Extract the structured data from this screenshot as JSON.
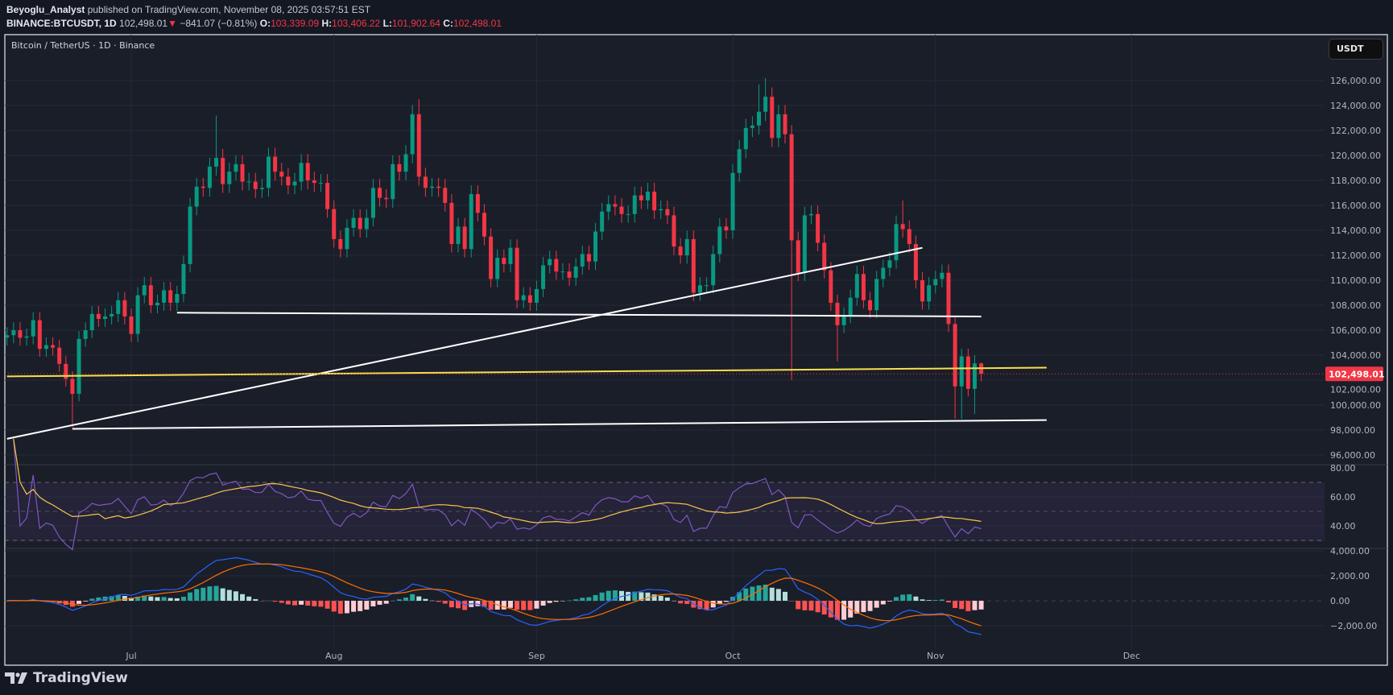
{
  "header": {
    "author": "Beyoglu_Analyst",
    "published": " published on TradingView.com, November 08, 2025 03:57:51 EST",
    "symbol": "BINANCE:BTCUSDT, 1D",
    "last": "102,498.01",
    "change": "−841.07 (−0.81%)",
    "o_label": "O:",
    "o": "103,339.09",
    "h_label": "H:",
    "h": "103,406.22",
    "l_label": "L:",
    "l": "101,902.64",
    "c_label": "C:",
    "c": "102,498.01"
  },
  "legend": {
    "title": "Bitcoin / TetherUS · 1D · Binance"
  },
  "currency_button": "USDT",
  "logo_text": "TradingView",
  "colors": {
    "up": "#089981",
    "down": "#f23645",
    "rsi": "#7e57c2",
    "rsi_ma": "#f7c548",
    "macd": "#2962ff",
    "signal": "#ff6d00",
    "trendline": "#ffffff",
    "yellow_line": "#f7e04b"
  },
  "chart_data": {
    "type": "candlestick",
    "price_axis": {
      "ticks": [
        "126,000.00",
        "124,000.00",
        "122,000.00",
        "120,000.00",
        "118,000.00",
        "116,000.00",
        "114,000.00",
        "112,000.00",
        "110,000.00",
        "108,000.00",
        "106,000.00",
        "104,000.00",
        "102,000.00",
        "100,000.00",
        "98,000.00",
        "96,000.00"
      ],
      "last_price_label": "102,498.01",
      "last_price": 102498.01
    },
    "time_axis": {
      "ticks": [
        {
          "date": "2025-07-01",
          "label": "Jul"
        },
        {
          "date": "2025-08-01",
          "label": "Aug"
        },
        {
          "date": "2025-09-01",
          "label": "Sep"
        },
        {
          "date": "2025-10-01",
          "label": "Oct"
        },
        {
          "date": "2025-11-01",
          "label": "Nov"
        },
        {
          "date": "2025-12-01",
          "label": "Dec"
        }
      ]
    },
    "last_candle": {
      "date": "2025-11-08",
      "open": 103339.09,
      "high": 103406.22,
      "low": 101902.64,
      "close": 102498.01
    },
    "closes": [
      [
        "2025-06-12",
        105600
      ],
      [
        "2025-06-13",
        106000
      ],
      [
        "2025-06-14",
        105400
      ],
      [
        "2025-06-15",
        105500
      ],
      [
        "2025-06-16",
        106800
      ],
      [
        "2025-06-17",
        104500
      ],
      [
        "2025-06-18",
        104800
      ],
      [
        "2025-06-19",
        104600
      ],
      [
        "2025-06-20",
        103300
      ],
      [
        "2025-06-21",
        102100
      ],
      [
        "2025-06-22",
        100900
      ],
      [
        "2025-06-23",
        105300
      ],
      [
        "2025-06-24",
        106000
      ],
      [
        "2025-06-25",
        107300
      ],
      [
        "2025-06-26",
        106900
      ],
      [
        "2025-06-27",
        107100
      ],
      [
        "2025-06-28",
        107300
      ],
      [
        "2025-06-29",
        108400
      ],
      [
        "2025-06-30",
        107100
      ],
      [
        "2025-07-01",
        105700
      ],
      [
        "2025-07-02",
        108800
      ],
      [
        "2025-07-03",
        109600
      ],
      [
        "2025-07-04",
        108000
      ],
      [
        "2025-07-05",
        108200
      ],
      [
        "2025-07-06",
        109200
      ],
      [
        "2025-07-07",
        108200
      ],
      [
        "2025-07-08",
        108900
      ],
      [
        "2025-07-09",
        111300
      ],
      [
        "2025-07-10",
        115900
      ],
      [
        "2025-07-11",
        117500
      ],
      [
        "2025-07-12",
        117400
      ],
      [
        "2025-07-13",
        119100
      ],
      [
        "2025-07-14",
        119800
      ],
      [
        "2025-07-15",
        117700
      ],
      [
        "2025-07-16",
        118700
      ],
      [
        "2025-07-17",
        119300
      ],
      [
        "2025-07-18",
        117900
      ],
      [
        "2025-07-19",
        117900
      ],
      [
        "2025-07-20",
        117300
      ],
      [
        "2025-07-21",
        117400
      ],
      [
        "2025-07-22",
        119900
      ],
      [
        "2025-07-23",
        118700
      ],
      [
        "2025-07-24",
        118300
      ],
      [
        "2025-07-25",
        117600
      ],
      [
        "2025-07-26",
        117900
      ],
      [
        "2025-07-27",
        119400
      ],
      [
        "2025-07-28",
        118000
      ],
      [
        "2025-07-29",
        117800
      ],
      [
        "2025-07-30",
        117800
      ],
      [
        "2025-07-31",
        115700
      ],
      [
        "2025-08-01",
        113300
      ],
      [
        "2025-08-02",
        112500
      ],
      [
        "2025-08-03",
        114200
      ],
      [
        "2025-08-04",
        115000
      ],
      [
        "2025-08-05",
        114100
      ],
      [
        "2025-08-06",
        115000
      ],
      [
        "2025-08-07",
        117400
      ],
      [
        "2025-08-08",
        116600
      ],
      [
        "2025-08-09",
        116500
      ],
      [
        "2025-08-10",
        119300
      ],
      [
        "2025-08-11",
        118700
      ],
      [
        "2025-08-12",
        120100
      ],
      [
        "2025-08-13",
        123300
      ],
      [
        "2025-08-14",
        118300
      ],
      [
        "2025-08-15",
        117400
      ],
      [
        "2025-08-16",
        117500
      ],
      [
        "2025-08-17",
        117400
      ],
      [
        "2025-08-18",
        116200
      ],
      [
        "2025-08-19",
        112900
      ],
      [
        "2025-08-20",
        114300
      ],
      [
        "2025-08-21",
        112500
      ],
      [
        "2025-08-22",
        116900
      ],
      [
        "2025-08-23",
        115400
      ],
      [
        "2025-08-24",
        113500
      ],
      [
        "2025-08-25",
        110100
      ],
      [
        "2025-08-26",
        111800
      ],
      [
        "2025-08-27",
        111300
      ],
      [
        "2025-08-28",
        112600
      ],
      [
        "2025-08-29",
        108400
      ],
      [
        "2025-08-30",
        108800
      ],
      [
        "2025-08-31",
        108200
      ],
      [
        "2025-09-01",
        109300
      ],
      [
        "2025-09-02",
        111200
      ],
      [
        "2025-09-03",
        111700
      ],
      [
        "2025-09-04",
        110700
      ],
      [
        "2025-09-05",
        110700
      ],
      [
        "2025-09-06",
        110200
      ],
      [
        "2025-09-07",
        111100
      ],
      [
        "2025-09-08",
        112100
      ],
      [
        "2025-09-09",
        111500
      ],
      [
        "2025-09-10",
        113900
      ],
      [
        "2025-09-11",
        115500
      ],
      [
        "2025-09-12",
        116100
      ],
      [
        "2025-09-13",
        115900
      ],
      [
        "2025-09-14",
        115300
      ],
      [
        "2025-09-15",
        115300
      ],
      [
        "2025-09-16",
        116800
      ],
      [
        "2025-09-17",
        116400
      ],
      [
        "2025-09-18",
        117100
      ],
      [
        "2025-09-19",
        115600
      ],
      [
        "2025-09-20",
        115700
      ],
      [
        "2025-09-21",
        115200
      ],
      [
        "2025-09-22",
        112700
      ],
      [
        "2025-09-23",
        112000
      ],
      [
        "2025-09-24",
        113300
      ],
      [
        "2025-09-25",
        109000
      ],
      [
        "2025-09-26",
        109600
      ],
      [
        "2025-09-27",
        109600
      ],
      [
        "2025-09-28",
        112100
      ],
      [
        "2025-09-29",
        114300
      ],
      [
        "2025-09-30",
        114000
      ],
      [
        "2025-10-01",
        118600
      ],
      [
        "2025-10-02",
        120500
      ],
      [
        "2025-10-03",
        122200
      ],
      [
        "2025-10-04",
        122400
      ],
      [
        "2025-10-05",
        123500
      ],
      [
        "2025-10-06",
        124700
      ],
      [
        "2025-10-07",
        121400
      ],
      [
        "2025-10-08",
        123300
      ],
      [
        "2025-10-09",
        121700
      ],
      [
        "2025-10-10",
        113200
      ],
      [
        "2025-10-11",
        110600
      ],
      [
        "2025-10-12",
        115200
      ],
      [
        "2025-10-13",
        115300
      ],
      [
        "2025-10-14",
        113000
      ],
      [
        "2025-10-15",
        110800
      ],
      [
        "2025-10-16",
        108200
      ],
      [
        "2025-10-17",
        106400
      ],
      [
        "2025-10-18",
        107200
      ],
      [
        "2025-10-19",
        108600
      ],
      [
        "2025-10-20",
        110500
      ],
      [
        "2025-10-21",
        108400
      ],
      [
        "2025-10-22",
        107600
      ],
      [
        "2025-10-23",
        110100
      ],
      [
        "2025-10-24",
        111000
      ],
      [
        "2025-10-25",
        111600
      ],
      [
        "2025-10-26",
        114500
      ],
      [
        "2025-10-27",
        114100
      ],
      [
        "2025-10-28",
        112900
      ],
      [
        "2025-10-29",
        110000
      ],
      [
        "2025-10-30",
        108300
      ],
      [
        "2025-10-31",
        109600
      ],
      [
        "2025-11-01",
        110100
      ],
      [
        "2025-11-02",
        110600
      ],
      [
        "2025-11-03",
        106500
      ],
      [
        "2025-11-04",
        101500
      ],
      [
        "2025-11-05",
        103900
      ],
      [
        "2025-11-06",
        101300
      ],
      [
        "2025-11-07",
        103339.09
      ],
      [
        "2025-11-08",
        102498.01
      ]
    ],
    "wick_extremes": {
      "2025-06-22": {
        "low": 98200
      },
      "2025-07-14": {
        "high": 123200
      },
      "2025-08-14": {
        "high": 124500
      },
      "2025-10-05": {
        "high": 125700
      },
      "2025-10-06": {
        "high": 126200
      },
      "2025-10-10": {
        "low": 102000
      },
      "2025-10-17": {
        "low": 103500
      },
      "2025-10-27": {
        "high": 116400
      },
      "2025-11-04": {
        "low": 98900
      },
      "2025-11-05": {
        "low": 98900
      },
      "2025-11-07": {
        "low": 99300,
        "high": 104000
      }
    },
    "drawings": [
      {
        "name": "rising-trendline",
        "color": "#ffffff",
        "from": [
          "2025-06-12",
          97300
        ],
        "to": [
          "2025-10-30",
          112600
        ]
      },
      {
        "name": "resistance-line",
        "color": "#ffffff",
        "from": [
          "2025-07-08",
          107400
        ],
        "to": [
          "2025-11-08",
          107100
        ]
      },
      {
        "name": "yellow-line",
        "color": "#f7e04b",
        "from": [
          "2025-06-12",
          102300
        ],
        "to": [
          "2025-11-18",
          103000
        ]
      },
      {
        "name": "support-line",
        "color": "#ffffff",
        "from": [
          "2025-06-22",
          98100
        ],
        "to": [
          "2025-11-18",
          98800
        ]
      }
    ],
    "rsi": {
      "axis_ticks": [
        "80.00",
        "60.00",
        "40.00"
      ],
      "upper": 70,
      "lower": 30
    },
    "macd": {
      "axis_ticks": [
        "4,000.00",
        "2,000.00",
        "0.00",
        "−2,000.00"
      ]
    }
  }
}
